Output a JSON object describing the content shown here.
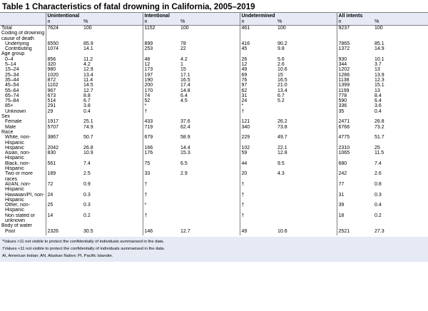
{
  "title": "Table 1 Characteristics of fatal drowning in California, 2005–2019",
  "groups": [
    "",
    "Unintentional",
    "Intentional",
    "Undetermined",
    "All intents"
  ],
  "subheaders": [
    "",
    "n",
    "%",
    "n",
    "%",
    "n",
    "%",
    "n",
    "%"
  ],
  "rows": [
    {
      "label": "Total",
      "indent": false,
      "cells": [
        "7624",
        "100",
        "1152",
        "100",
        "461",
        "100",
        "9237",
        "100"
      ]
    },
    {
      "label": "Coding of drowning cause of death",
      "indent": false,
      "cells": [
        "",
        "",
        "",
        "",
        "",
        "",
        "",
        ""
      ]
    },
    {
      "label": "Underlying",
      "indent": true,
      "cells": [
        "6550",
        "85.9",
        "899",
        "78",
        "416",
        "90.2",
        "7865",
        "85.1"
      ]
    },
    {
      "label": "Contributing",
      "indent": true,
      "cells": [
        "1074",
        "14.1",
        "253",
        "22",
        "45",
        "9.8",
        "1372",
        "14.9"
      ]
    },
    {
      "label": "Age group",
      "indent": false,
      "cells": [
        "",
        "",
        "",
        "",
        "",
        "",
        "",
        ""
      ]
    },
    {
      "label": "0–4",
      "indent": true,
      "cells": [
        "856",
        "11.2",
        "48",
        "4.2",
        "26",
        "5.6",
        "930",
        "10.1"
      ]
    },
    {
      "label": "5–14",
      "indent": true,
      "cells": [
        "320",
        "4.2",
        "12",
        "1",
        "12",
        "2.6",
        "344",
        "3.7"
      ]
    },
    {
      "label": "15–24",
      "indent": true,
      "cells": [
        "980",
        "12.9",
        "173",
        "15",
        "49",
        "10.6",
        "1202",
        "13"
      ]
    },
    {
      "label": "25–34",
      "indent": true,
      "cells": [
        "1020",
        "13.4",
        "197",
        "17.1",
        "69",
        "15",
        "1286",
        "13.9"
      ]
    },
    {
      "label": "35–44",
      "indent": true,
      "cells": [
        "872",
        "11.4",
        "190",
        "16.5",
        "76",
        "16.5",
        "1138",
        "12.3"
      ]
    },
    {
      "label": "45–54",
      "indent": true,
      "cells": [
        "1102",
        "14.5",
        "200",
        "17.4",
        "97",
        "21.0",
        "1399",
        "15.1"
      ]
    },
    {
      "label": "55–64",
      "indent": true,
      "cells": [
        "967",
        "12.7",
        "170",
        "14.8",
        "62",
        "13.4",
        "1199",
        "13"
      ]
    },
    {
      "label": "65–74",
      "indent": true,
      "cells": [
        "673",
        "8.8",
        "74",
        "6.4",
        "31",
        "6.7",
        "778",
        "8.4"
      ]
    },
    {
      "label": "75–84",
      "indent": true,
      "cells": [
        "514",
        "6.7",
        "52",
        "4.5",
        "24",
        "5.2",
        "590",
        "6.4"
      ]
    },
    {
      "label": "85+",
      "indent": true,
      "cells": [
        "291",
        "3.8",
        "*",
        "",
        "*",
        "",
        "336",
        "3.6"
      ]
    },
    {
      "label": "Unknown",
      "indent": true,
      "cells": [
        "29",
        "0.4",
        "†",
        "",
        "†",
        "",
        "35",
        "0.4"
      ]
    },
    {
      "label": "Sex",
      "indent": false,
      "cells": [
        "",
        "",
        "",
        "",
        "",
        "",
        "",
        ""
      ]
    },
    {
      "label": "Female",
      "indent": true,
      "cells": [
        "1917",
        "25.1",
        "433",
        "37.6",
        "121",
        "26.2",
        "2471",
        "26.8"
      ]
    },
    {
      "label": "Male",
      "indent": true,
      "cells": [
        "5707",
        "74.9",
        "719",
        "62.4",
        "340",
        "73.8",
        "6766",
        "73.2"
      ]
    },
    {
      "label": "Race",
      "indent": false,
      "cells": [
        "",
        "",
        "",
        "",
        "",
        "",
        "",
        ""
      ]
    },
    {
      "label": "White, non-Hispanic",
      "indent": true,
      "cells": [
        "3867",
        "50.7",
        "679",
        "58.9",
        "229",
        "49.7",
        "4775",
        "51.7"
      ]
    },
    {
      "label": "Hispanic",
      "indent": true,
      "cells": [
        "2042",
        "26.8",
        "166",
        "14.4",
        "102",
        "22.1",
        "2310",
        "25"
      ]
    },
    {
      "label": "Asian, non-Hispanic",
      "indent": true,
      "cells": [
        "830",
        "10.9",
        "176",
        "15.3",
        "59",
        "12.8",
        "1065",
        "11.5"
      ]
    },
    {
      "label": "Black, non-Hispanic",
      "indent": true,
      "cells": [
        "561",
        "7.4",
        "75",
        "6.5",
        "44",
        "9.5",
        "680",
        "7.4"
      ]
    },
    {
      "label": "Two or more races",
      "indent": true,
      "cells": [
        "189",
        "2.5",
        "33",
        "2.9",
        "20",
        "4.3",
        "242",
        "2.6"
      ]
    },
    {
      "label": "AI/AN, non-Hispanic",
      "indent": true,
      "cells": [
        "72",
        "0.9",
        "†",
        "",
        "†",
        "",
        "77",
        "0.8"
      ]
    },
    {
      "label": "Hawaiian/PI, non-Hispanic",
      "indent": true,
      "cells": [
        "24",
        "0.3",
        "†",
        "",
        "†",
        "",
        "31",
        "0.3"
      ]
    },
    {
      "label": "Other, non-Hispanic",
      "indent": true,
      "cells": [
        "25",
        "0.3",
        "*",
        "",
        "†",
        "",
        "39",
        "0.4"
      ]
    },
    {
      "label": "Non stated or unknown",
      "indent": true,
      "cells": [
        "14",
        "0.2",
        "†",
        "",
        "†",
        "",
        "18",
        "0.2"
      ]
    },
    {
      "label": "Body of water",
      "indent": false,
      "cells": [
        "",
        "",
        "",
        "",
        "",
        "",
        "",
        ""
      ]
    },
    {
      "label": "Pool",
      "indent": true,
      "cells": [
        "2326",
        "30.5",
        "146",
        "12.7",
        "49",
        "10.6",
        "2521",
        "27.3"
      ]
    }
  ],
  "footnotes": [
    "*Values >11 not visible to protect the confidentially of individuals summarised in the data.",
    "†Values <11 not visible to protect the confidentially of individuals summarised in the data.",
    "AI, American Indian; AN, Alaskan Native; PI, Pacific Islander."
  ]
}
